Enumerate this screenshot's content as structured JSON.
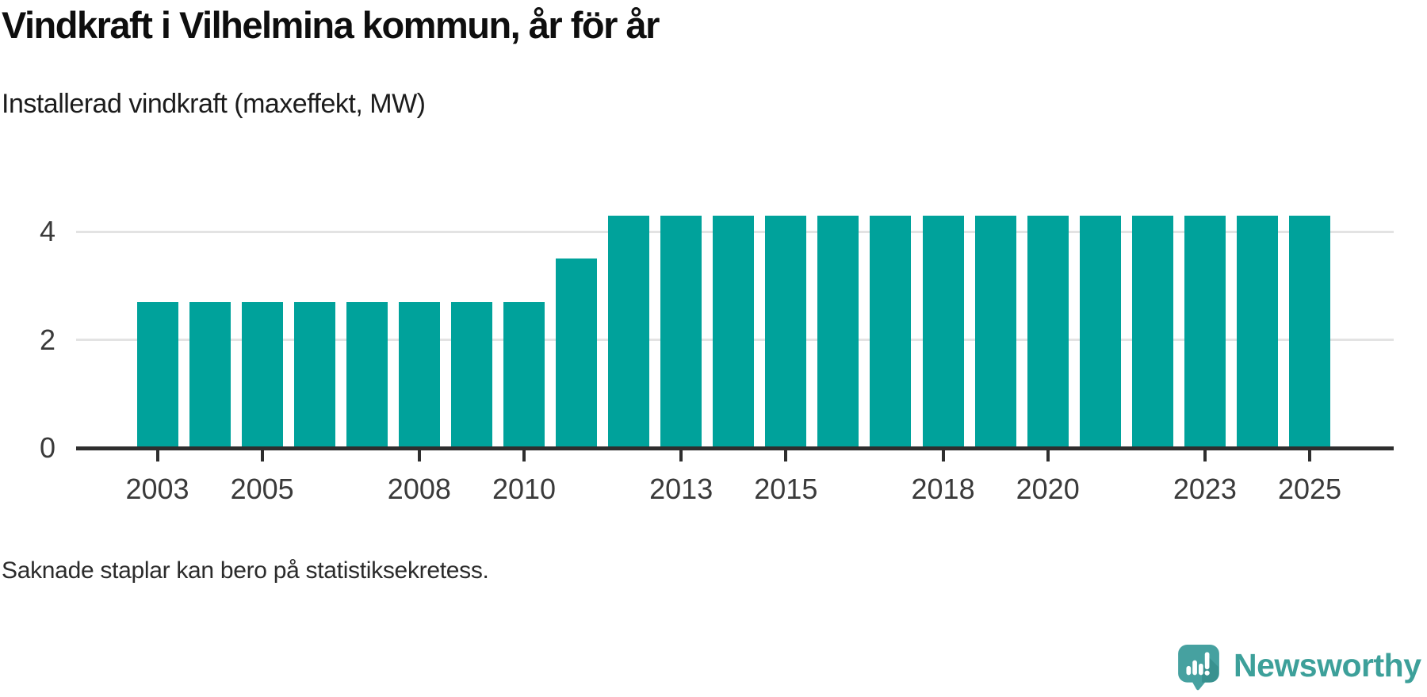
{
  "title": "Vindkraft i Vilhelmina kommun, år för år",
  "subtitle": "Installerad vindkraft (maxeffekt, MW)",
  "footnote": "Saknade staplar kan bero på statistiksekretess.",
  "brand": {
    "name": "Newsworthy"
  },
  "colors": {
    "bar": "#00a29b",
    "axis": "#2e2e2e",
    "gridline": "#e3e3e3",
    "brand_text": "#3da09a",
    "brand_bubble": "#46a1a0",
    "brand_bubble_shadow": "#38918f",
    "brand_glyph": "#ffffff"
  },
  "chart_data": {
    "type": "bar",
    "title": "Vindkraft i Vilhelmina kommun, år för år",
    "subtitle": "Installerad vindkraft (maxeffekt, MW)",
    "xlabel": "",
    "ylabel": "Installerad vindkraft (maxeffekt, MW)",
    "x": [
      2003,
      2004,
      2005,
      2006,
      2007,
      2008,
      2009,
      2010,
      2011,
      2012,
      2013,
      2014,
      2015,
      2016,
      2017,
      2018,
      2019,
      2020,
      2021,
      2022,
      2023,
      2024,
      2025
    ],
    "values": [
      2.7,
      2.7,
      2.7,
      2.7,
      2.7,
      2.7,
      2.7,
      2.7,
      3.5,
      4.3,
      4.3,
      4.3,
      4.3,
      4.3,
      4.3,
      4.3,
      4.3,
      4.3,
      4.3,
      4.3,
      4.3,
      4.3,
      4.3
    ],
    "yticks": [
      0,
      2,
      4
    ],
    "xticks": [
      2003,
      2005,
      2008,
      2010,
      2013,
      2015,
      2018,
      2020,
      2023,
      2025
    ],
    "ylim": [
      0,
      5
    ],
    "grid": "horizontal",
    "legend": "none"
  }
}
